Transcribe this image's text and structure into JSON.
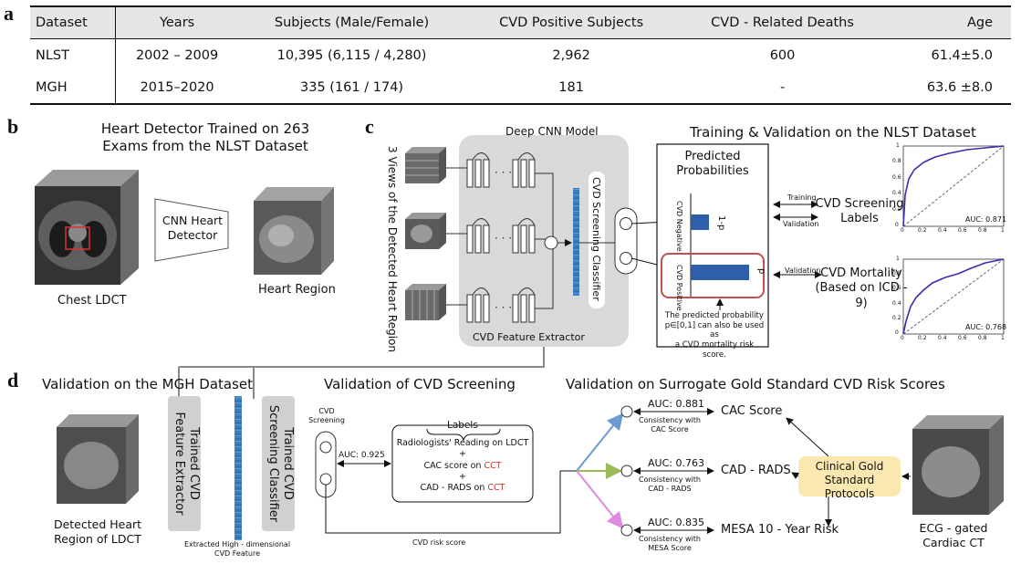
{
  "table": {
    "headers": [
      "Dataset",
      "Years",
      "Subjects (Male/Female)",
      "CVD Positive Subjects",
      "CVD - Related Deaths",
      "Age"
    ],
    "rows": [
      [
        "NLST",
        "2002 – 2009",
        "10,395 (6,115 / 4,280)",
        "2,962",
        "600",
        "61.4±5.0"
      ],
      [
        "MGH",
        "2015–2020",
        "335 (161 / 174)",
        "181",
        "-",
        "63.6 ±8.0"
      ]
    ]
  },
  "panels": {
    "a": "a",
    "b": "b",
    "c": "c",
    "d": "d"
  },
  "b": {
    "title_line1": "Heart Detector Trained on 263",
    "title_line2": "Exams from the NLST Dataset",
    "detector_line1": "CNN Heart",
    "detector_line2": "Detector",
    "input_label": "Chest LDCT",
    "output_label": "Heart Region"
  },
  "c": {
    "model_title": "Deep CNN Model",
    "views_label": "3 Views of the Detected Heart Region",
    "classifier_label": "CVD Screening Classifier",
    "extractor_label": "CVD Feature Extractor",
    "section_title": "Training & Validation on the NLST Dataset",
    "pred_title_line1": "Predicted",
    "pred_title_line2": "Probabilities",
    "neg_label": "CVD Negative",
    "pos_label": "CVD Positive",
    "neg_value": "1-p",
    "pos_value": "p",
    "training_label": "Training",
    "validation_label": "Validation",
    "validation_label2": "Validation",
    "screening_labels_line1": "CVD Screening",
    "screening_labels_line2": "Labels",
    "mortality_line1": "CVD Mortality",
    "mortality_line2": "(Based on ICD - 9)",
    "note_line1": "The predicted probability",
    "note_line2": "p∈[0,1] can also be used as",
    "note_line3": "a CVD mortality risk score.",
    "roc_top_auc": "AUC: 0.871",
    "roc_bottom_auc": "AUC: 0.768",
    "roc_ticks_x": [
      "0",
      "0.2",
      "0.4",
      "0.6",
      "0.8",
      "1"
    ],
    "roc_ticks_y": [
      "0",
      "0.2",
      "0.4",
      "0.6",
      "0.8",
      "1"
    ],
    "colors": {
      "roc_curve": "#3a2bb0",
      "highlight_box": "#c0504d",
      "bar": "#2e5fa8",
      "model_bg": "#d9d9d9"
    }
  },
  "d": {
    "title_mgh": "Validation on the MGH Dataset",
    "title_screening": "Validation of CVD Screening",
    "title_surrogate": "Validation on Surrogate Gold Standard CVD Risk Scores",
    "input_line1": "Detected Heart",
    "input_line2": "Region of LDCT",
    "extractor_line1": "Trained CVD",
    "extractor_line2": "Feature Extractor",
    "classifier_line1": "Trained CVD",
    "classifier_line2": "Screening Classifier",
    "feature_line1": "Extracted High - dimensional",
    "feature_line2": "CVD Feature",
    "screening_line1": "CVD",
    "screening_line2": "Screening",
    "auc_screening": "AUC: 0.925",
    "labels_title": "Labels",
    "labels_line1": "Radiologists' Reading on LDCT",
    "plus": "+",
    "labels_line2": "CAC score on",
    "labels_line3": "CAD - RADS on",
    "cct": "CCT",
    "risk_score_label": "CVD risk score",
    "auc_cac": "AUC:  0.881",
    "auc_cad": "AUC:  0.763",
    "auc_mesa": "AUC:  0.835",
    "consistency_cac_line1": "Consistency with",
    "consistency_cac_line2": "CAC  Score",
    "consistency_cad_line1": "Consistency with",
    "consistency_cad_line2": "CAD - RADS",
    "consistency_mesa_line1": "Consistency with",
    "consistency_mesa_line2": "MESA  Score",
    "cac_score": "CAC Score",
    "cad_rads": "CAD - RADS",
    "mesa": "MESA 10 - Year Risk",
    "protocol_line1": "Clinical Gold",
    "protocol_line2": "Standard Protocols",
    "cct_line1": "ECG - gated",
    "cct_line2": "Cardiac CT",
    "colors": {
      "blue_arrow": "#6c9bd2",
      "green_arrow": "#9bbb59",
      "pink_arrow": "#e08be0",
      "protocol_bg": "#fae8b0",
      "cct_text": "#c0392b"
    }
  }
}
